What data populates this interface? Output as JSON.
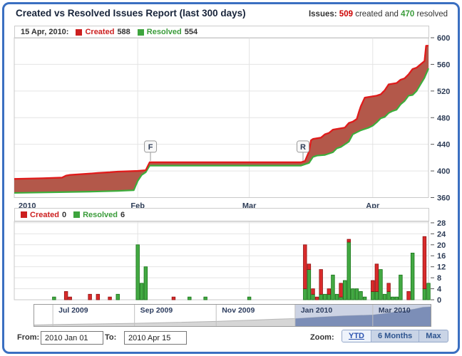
{
  "header": {
    "title": "Created vs Resolved Issues Report (last 300 days)",
    "issues_prefix": "Issues:",
    "created_count": "509",
    "mid_text": "created and",
    "resolved_count": "470",
    "suffix_text": "resolved"
  },
  "main_chart": {
    "legend": {
      "date": "15 Apr, 2010:",
      "created_label": "Created",
      "created_value": "588",
      "resolved_label": "Resolved",
      "resolved_value": "554"
    }
  },
  "bar_chart": {
    "legend": {
      "created_label": "Created",
      "created_value": "0",
      "resolved_label": "Resolved",
      "resolved_value": "6"
    }
  },
  "colors": {
    "created_line": "#e01b1b",
    "resolved_line": "#3cae3c",
    "band_fill": "#b3584a",
    "created_bar": "#d92b2b",
    "created_bar_border": "#8f1111",
    "resolved_bar": "#43a943",
    "resolved_bar_border": "#157215",
    "grid": "#e4e4e4",
    "plot_border": "#c9c9c9",
    "frame": "#3a6fc1"
  },
  "chart_data": [
    {
      "type": "area",
      "title": "Cumulative created vs resolved issues, 1 Jan 2010 - 15 Apr 2010",
      "x_unit": "days since 2010-01-01",
      "x_range": [
        0,
        104
      ],
      "ylim": [
        360,
        600
      ],
      "y_ticks": [
        360,
        400,
        440,
        480,
        520,
        560,
        600
      ],
      "x_ticks": [
        {
          "label": "2010",
          "day": 0,
          "anchor": "start"
        },
        {
          "label": "Feb",
          "day": 31
        },
        {
          "label": "Mar",
          "day": 59
        },
        {
          "label": "Apr",
          "day": 90
        }
      ],
      "grid_days": [
        31,
        59,
        90
      ],
      "flags": [
        {
          "label": "F",
          "day": 34.2,
          "value": 413
        },
        {
          "label": "R",
          "day": 72.5,
          "value": 413
        }
      ],
      "series": [
        {
          "name": "Created",
          "points": [
            [
              0,
              388
            ],
            [
              7,
              389
            ],
            [
              12,
              390
            ],
            [
              13,
              393
            ],
            [
              14,
              394
            ],
            [
              19,
              396
            ],
            [
              21,
              397
            ],
            [
              24,
              398
            ],
            [
              26,
              399
            ],
            [
              31,
              400
            ],
            [
              33,
              401
            ],
            [
              34,
              413
            ],
            [
              72,
              413
            ],
            [
              73,
              415
            ],
            [
              74,
              429
            ],
            [
              74.5,
              446
            ],
            [
              75,
              448
            ],
            [
              77,
              450
            ],
            [
              78,
              455
            ],
            [
              79,
              457
            ],
            [
              80,
              462
            ],
            [
              81,
              463
            ],
            [
              83,
              465
            ],
            [
              84,
              472
            ],
            [
              85,
              474
            ],
            [
              86,
              478
            ],
            [
              86.5,
              488
            ],
            [
              87,
              497
            ],
            [
              88,
              510
            ],
            [
              91,
              513
            ],
            [
              92,
              515
            ],
            [
              93,
              521
            ],
            [
              94,
              530
            ],
            [
              96,
              532
            ],
            [
              97,
              537
            ],
            [
              98,
              539
            ],
            [
              99,
              545
            ],
            [
              100,
              553
            ],
            [
              101,
              555
            ],
            [
              102,
              560
            ],
            [
              103,
              565
            ],
            [
              103.4,
              588
            ],
            [
              104,
              588
            ]
          ]
        },
        {
          "name": "Resolved",
          "points": [
            [
              0,
              367
            ],
            [
              10,
              368
            ],
            [
              20,
              369
            ],
            [
              26,
              370
            ],
            [
              30,
              371
            ],
            [
              31,
              385
            ],
            [
              32,
              394
            ],
            [
              33,
              398
            ],
            [
              34,
              408
            ],
            [
              72,
              408
            ],
            [
              73,
              410
            ],
            [
              74,
              412
            ],
            [
              75,
              421
            ],
            [
              76,
              423
            ],
            [
              78,
              424
            ],
            [
              79,
              426
            ],
            [
              80,
              428
            ],
            [
              81,
              434
            ],
            [
              82,
              436
            ],
            [
              83,
              440
            ],
            [
              84,
              444
            ],
            [
              85,
              455
            ],
            [
              86,
              458
            ],
            [
              87,
              461
            ],
            [
              88,
              463
            ],
            [
              89,
              465
            ],
            [
              90,
              468
            ],
            [
              91,
              473
            ],
            [
              92,
              479
            ],
            [
              93,
              481
            ],
            [
              94,
              487
            ],
            [
              95,
              490
            ],
            [
              96,
              492
            ],
            [
              97,
              500
            ],
            [
              98,
              505
            ],
            [
              99,
              513
            ],
            [
              100,
              514
            ],
            [
              101,
              520
            ],
            [
              102,
              530
            ],
            [
              103,
              540
            ],
            [
              104,
              554
            ]
          ]
        }
      ]
    },
    {
      "type": "bar",
      "stacked": true,
      "title": "Daily created / resolved issues",
      "x_range": [
        0,
        104
      ],
      "ylim": [
        0,
        28.5
      ],
      "y_ticks": [
        0,
        4,
        8,
        12,
        16,
        20,
        24,
        28
      ],
      "grid_days": [
        31,
        59,
        90
      ],
      "series": [
        {
          "name": "Created"
        },
        {
          "name": "Resolved"
        }
      ],
      "bars_day_created_resolved": [
        [
          10,
          0,
          1
        ],
        [
          13,
          3,
          0
        ],
        [
          14,
          1,
          0
        ],
        [
          19,
          2,
          0
        ],
        [
          21,
          2,
          0
        ],
        [
          24,
          1,
          0
        ],
        [
          26,
          0,
          2
        ],
        [
          31,
          0,
          20
        ],
        [
          32,
          0,
          6
        ],
        [
          33,
          0,
          12
        ],
        [
          40,
          1,
          0
        ],
        [
          44,
          0,
          1
        ],
        [
          48,
          0,
          1
        ],
        [
          59,
          0,
          1
        ],
        [
          73,
          16,
          4
        ],
        [
          74,
          2,
          11
        ],
        [
          75,
          2,
          2
        ],
        [
          76,
          1,
          0
        ],
        [
          77,
          9,
          2
        ],
        [
          78,
          0,
          2
        ],
        [
          79,
          2,
          2
        ],
        [
          80,
          0,
          9
        ],
        [
          81,
          0,
          2
        ],
        [
          82,
          5,
          1
        ],
        [
          83,
          0,
          7
        ],
        [
          84,
          1,
          21
        ],
        [
          85,
          0,
          4
        ],
        [
          86,
          0,
          4
        ],
        [
          87,
          0,
          3
        ],
        [
          88,
          0,
          1
        ],
        [
          90,
          4,
          3
        ],
        [
          91,
          10,
          3
        ],
        [
          92,
          0,
          11
        ],
        [
          93,
          0,
          2
        ],
        [
          94,
          3,
          3
        ],
        [
          95,
          0,
          1
        ],
        [
          96,
          0,
          1
        ],
        [
          97,
          0,
          9
        ],
        [
          99,
          3,
          0
        ],
        [
          100,
          0,
          17
        ],
        [
          103,
          19,
          4
        ],
        [
          104,
          0,
          6
        ]
      ]
    },
    {
      "type": "navigator",
      "title": "Timeline overview, 19 Jun 2009 - 15 Apr 2010",
      "month_labels": [
        {
          "label": "Jul 2009",
          "f": 0.047
        },
        {
          "label": "Sep 2009",
          "f": 0.253
        },
        {
          "label": "Nov 2009",
          "f": 0.459
        },
        {
          "label": "Jan 2010",
          "f": 0.658
        },
        {
          "label": "Mar 2010",
          "f": 0.854
        }
      ],
      "selection": {
        "from_f": 0.658,
        "to_f": 1.0
      },
      "profile": [
        [
          0,
          0.05
        ],
        [
          0.047,
          0.07
        ],
        [
          0.15,
          0.1
        ],
        [
          0.253,
          0.13
        ],
        [
          0.35,
          0.17
        ],
        [
          0.459,
          0.22
        ],
        [
          0.55,
          0.28
        ],
        [
          0.62,
          0.33
        ],
        [
          0.658,
          0.35
        ],
        [
          0.72,
          0.42
        ],
        [
          0.78,
          0.48
        ],
        [
          0.854,
          0.52
        ],
        [
          0.9,
          0.63
        ],
        [
          0.935,
          0.72
        ],
        [
          0.96,
          0.8
        ],
        [
          0.98,
          0.88
        ],
        [
          1,
          0.9
        ]
      ]
    }
  ],
  "footer": {
    "from_label": "From:",
    "from_value": "2010 Jan 01",
    "to_label": "To:",
    "to_value": "2010 Apr 15",
    "zoom_label": "Zoom:",
    "buttons": [
      {
        "label": "YTD",
        "active": true
      },
      {
        "label": "6 Months",
        "active": false
      },
      {
        "label": "Max",
        "active": false
      }
    ]
  }
}
